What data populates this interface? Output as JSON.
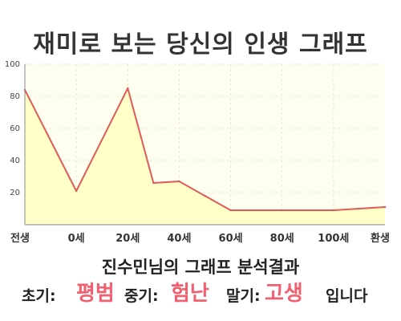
{
  "page": {
    "title": "재미로 보는 당신의 인생 그래프"
  },
  "chart_data": {
    "type": "area",
    "title": "재미로 보는 당신의 인생 그래프",
    "x_categories": [
      "전생",
      "0세",
      "20세",
      "40세",
      "60세",
      "80세",
      "100세",
      "환생"
    ],
    "points": [
      {
        "x": "전생",
        "y": 84
      },
      {
        "x": "0세",
        "y": 21
      },
      {
        "x": "20세",
        "y": 85
      },
      {
        "x": "30세",
        "y": 26
      },
      {
        "x": "40세",
        "y": 27
      },
      {
        "x": "50세",
        "y": 18
      },
      {
        "x": "60세",
        "y": 9
      },
      {
        "x": "70세",
        "y": 9
      },
      {
        "x": "80세",
        "y": 9
      },
      {
        "x": "90세",
        "y": 9
      },
      {
        "x": "100세",
        "y": 9
      },
      {
        "x": "110세",
        "y": 10
      },
      {
        "x": "환생",
        "y": 11
      }
    ],
    "y_ticks": [
      20,
      40,
      60,
      80,
      100
    ],
    "ylim": [
      0,
      100
    ],
    "grid": true,
    "colors": {
      "line": "#e05a5a",
      "fill": "#ffffc8",
      "plot_bg": "#fffff0",
      "grid": "#e8e8d0",
      "axis": "#888888"
    }
  },
  "result": {
    "heading": "진수민님의 그래프 분석결과",
    "early_label": "초기:",
    "early_value": "평범",
    "middle_label": "중기:",
    "middle_value": "험난",
    "late_label": "말기:",
    "late_value": "고생",
    "ending": "입니다"
  }
}
